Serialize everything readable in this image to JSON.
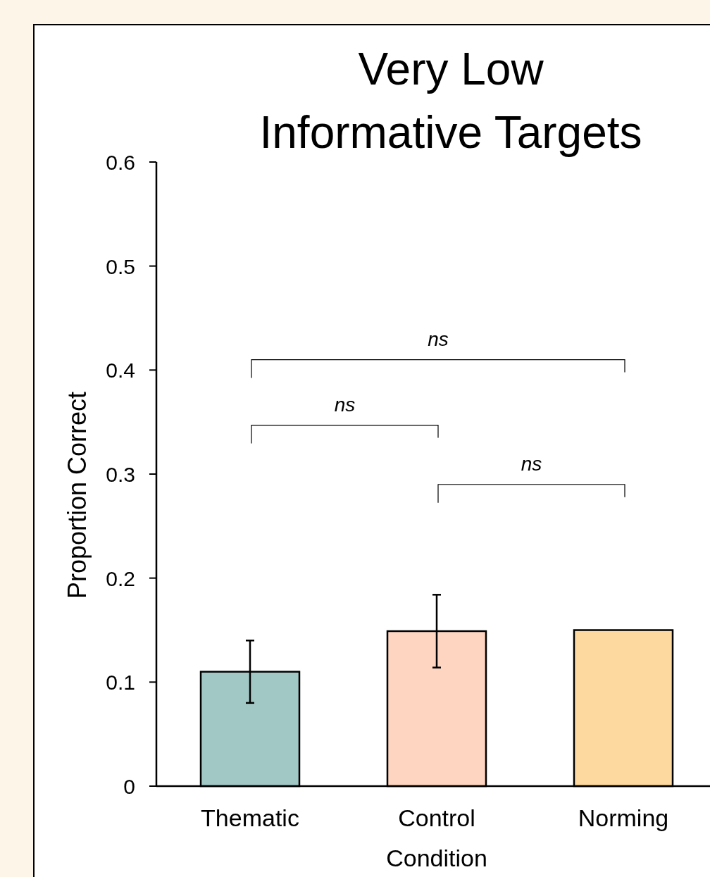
{
  "chart_data": {
    "type": "bar",
    "title": "Very Low\nInformative Targets",
    "xlabel": "Condition",
    "ylabel": "Proportion Correct",
    "categories": [
      "Thematic",
      "Control",
      "Norming"
    ],
    "values": [
      0.11,
      0.149,
      0.15
    ],
    "colors": [
      "#a2c8c6",
      "#fdd5c1",
      "#fdd99f"
    ],
    "errors": [
      0.03,
      0.035,
      null
    ],
    "ylim": [
      0,
      0.6
    ],
    "yticks": [
      0,
      0.1,
      0.2,
      0.3,
      0.4,
      0.5,
      0.6
    ],
    "annotations": [
      "ns",
      "ns",
      "ns"
    ]
  }
}
